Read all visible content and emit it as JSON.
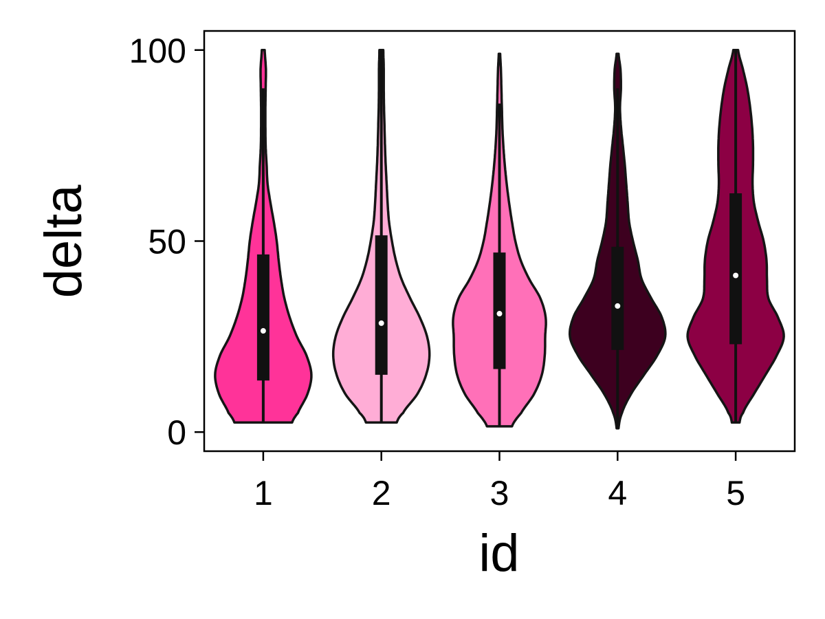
{
  "chart_data": {
    "type": "violin",
    "xlabel": "id",
    "ylabel": "delta",
    "ylim": [
      -5,
      105
    ],
    "yticks": [
      0,
      50,
      100
    ],
    "grid": false,
    "legend": "none",
    "categories": [
      "1",
      "2",
      "3",
      "4",
      "5"
    ],
    "series": [
      {
        "category": "1",
        "color": "#ff3399",
        "min": 2.5,
        "max": 100,
        "q1": 13.5,
        "median": 26.5,
        "q3": 46.5,
        "whisker_low": 2.5,
        "whisker_high": 90,
        "density": [
          [
            2.5,
            0.6
          ],
          [
            5,
            0.72
          ],
          [
            10,
            0.92
          ],
          [
            15,
            1.0
          ],
          [
            20,
            0.9
          ],
          [
            25,
            0.7
          ],
          [
            30,
            0.55
          ],
          [
            35,
            0.44
          ],
          [
            40,
            0.37
          ],
          [
            45,
            0.32
          ],
          [
            50,
            0.28
          ],
          [
            55,
            0.22
          ],
          [
            60,
            0.15
          ],
          [
            65,
            0.09
          ],
          [
            70,
            0.07
          ],
          [
            75,
            0.05
          ],
          [
            80,
            0.045
          ],
          [
            85,
            0.045
          ],
          [
            90,
            0.05
          ],
          [
            95,
            0.055
          ],
          [
            100,
            0.03
          ]
        ]
      },
      {
        "category": "2",
        "color": "#ffadd6",
        "min": 2.5,
        "max": 100,
        "q1": 15,
        "median": 28.5,
        "q3": 51.5,
        "whisker_low": 2.5,
        "whisker_high": 100,
        "density": [
          [
            2.5,
            0.32
          ],
          [
            5,
            0.45
          ],
          [
            10,
            0.75
          ],
          [
            15,
            0.93
          ],
          [
            20,
            1.0
          ],
          [
            25,
            0.95
          ],
          [
            30,
            0.8
          ],
          [
            35,
            0.6
          ],
          [
            40,
            0.42
          ],
          [
            45,
            0.3
          ],
          [
            50,
            0.22
          ],
          [
            55,
            0.16
          ],
          [
            60,
            0.13
          ],
          [
            65,
            0.11
          ],
          [
            70,
            0.09
          ],
          [
            75,
            0.075
          ],
          [
            80,
            0.065
          ],
          [
            85,
            0.055
          ],
          [
            90,
            0.05
          ],
          [
            95,
            0.05
          ],
          [
            100,
            0.04
          ]
        ]
      },
      {
        "category": "3",
        "color": "#ff70b8",
        "min": 1.5,
        "max": 99,
        "q1": 16.5,
        "median": 31,
        "q3": 47,
        "whisker_low": 1.5,
        "whisker_high": 86,
        "density": [
          [
            1.5,
            0.26
          ],
          [
            5,
            0.45
          ],
          [
            10,
            0.72
          ],
          [
            15,
            0.88
          ],
          [
            20,
            0.94
          ],
          [
            25,
            0.95
          ],
          [
            30,
            0.96
          ],
          [
            35,
            0.85
          ],
          [
            40,
            0.62
          ],
          [
            45,
            0.44
          ],
          [
            50,
            0.33
          ],
          [
            55,
            0.26
          ],
          [
            60,
            0.2
          ],
          [
            65,
            0.15
          ],
          [
            70,
            0.11
          ],
          [
            75,
            0.08
          ],
          [
            80,
            0.06
          ],
          [
            85,
            0.05
          ],
          [
            90,
            0.04
          ],
          [
            95,
            0.03
          ],
          [
            99,
            0.015
          ]
        ]
      },
      {
        "category": "4",
        "color": "#3d001f",
        "min": 1,
        "max": 99,
        "q1": 21.5,
        "median": 33,
        "q3": 48.5,
        "whisker_low": 1,
        "whisker_high": 90,
        "density": [
          [
            1,
            0.02
          ],
          [
            5,
            0.09
          ],
          [
            10,
            0.28
          ],
          [
            15,
            0.55
          ],
          [
            20,
            0.82
          ],
          [
            25,
            0.99
          ],
          [
            30,
            0.92
          ],
          [
            35,
            0.7
          ],
          [
            40,
            0.5
          ],
          [
            45,
            0.42
          ],
          [
            50,
            0.32
          ],
          [
            55,
            0.24
          ],
          [
            60,
            0.21
          ],
          [
            65,
            0.18
          ],
          [
            70,
            0.15
          ],
          [
            75,
            0.11
          ],
          [
            80,
            0.07
          ],
          [
            85,
            0.05
          ],
          [
            90,
            0.07
          ],
          [
            95,
            0.06
          ],
          [
            99,
            0.02
          ]
        ]
      },
      {
        "category": "5",
        "color": "#8c0044",
        "min": 2.5,
        "max": 100,
        "q1": 23,
        "median": 41,
        "q3": 62.5,
        "whisker_low": 2.5,
        "whisker_high": 100,
        "density": [
          [
            2.5,
            0.08
          ],
          [
            5,
            0.15
          ],
          [
            10,
            0.38
          ],
          [
            15,
            0.62
          ],
          [
            20,
            0.85
          ],
          [
            25,
            1.0
          ],
          [
            30,
            0.88
          ],
          [
            35,
            0.68
          ],
          [
            40,
            0.65
          ],
          [
            45,
            0.64
          ],
          [
            50,
            0.58
          ],
          [
            55,
            0.47
          ],
          [
            60,
            0.38
          ],
          [
            65,
            0.35
          ],
          [
            70,
            0.36
          ],
          [
            75,
            0.36
          ],
          [
            80,
            0.34
          ],
          [
            85,
            0.3
          ],
          [
            90,
            0.24
          ],
          [
            95,
            0.15
          ],
          [
            100,
            0.05
          ]
        ]
      }
    ]
  }
}
